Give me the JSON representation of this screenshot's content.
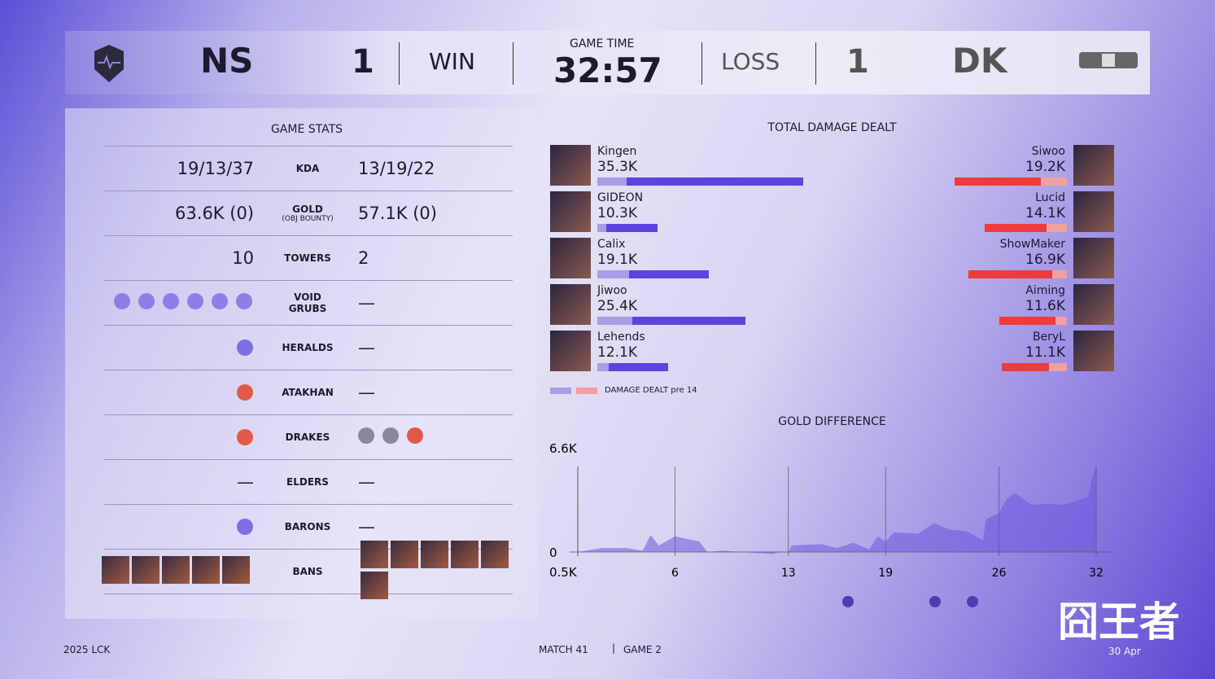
{
  "header": {
    "left_team": "NS",
    "left_score": "1",
    "left_result": "WIN",
    "game_time_label": "GAME TIME",
    "game_time": "32:57",
    "right_result": "LOSS",
    "right_score": "1",
    "right_team": "DK"
  },
  "game_stats": {
    "title": "GAME STATS",
    "rows": [
      {
        "label": "KDA",
        "left": "19/13/37",
        "right": "13/19/22"
      },
      {
        "label": "GOLD",
        "sublabel": "(OBJ BOUNTY)",
        "left": "63.6K (0)",
        "right": "57.1K (0)"
      },
      {
        "label": "TOWERS",
        "left": "10",
        "right": "2"
      },
      {
        "label": "VOID GRUBS",
        "left_icons": 6,
        "right": "—"
      },
      {
        "label": "HERALDS",
        "left_icon": "herald-icon",
        "right": "—"
      },
      {
        "label": "ATAKHAN",
        "left_icon": "atakhan-icon",
        "right": "—"
      },
      {
        "label": "DRAKES",
        "left_icon": "infernal-drake-icon",
        "right_icons": [
          "cloud-drake-icon",
          "chemtech-drake-icon",
          "infernal-drake-icon"
        ]
      },
      {
        "label": "ELDERS",
        "left": "—",
        "right": "—"
      },
      {
        "label": "BARONS",
        "left_icon": "baron-icon",
        "right": "—"
      },
      {
        "label": "BANS",
        "left_count": 5,
        "right_count": 6
      }
    ]
  },
  "damage": {
    "title": "TOTAL DAMAGE DEALT",
    "legend": "DAMAGE DEALT pre 14",
    "max": 35.3,
    "left_color": "#5b45e0",
    "left_pre_color": "#a79ee8",
    "right_color": "#ee3b3b",
    "right_pre_color": "#f1a0a0",
    "left": [
      {
        "name": "Kingen",
        "value": "35.3K",
        "v": 35.3,
        "pre": 5
      },
      {
        "name": "GIDEON",
        "value": "10.3K",
        "v": 10.3,
        "pre": 1.5
      },
      {
        "name": "Calix",
        "value": "19.1K",
        "v": 19.1,
        "pre": 5.5
      },
      {
        "name": "Jiwoo",
        "value": "25.4K",
        "v": 25.4,
        "pre": 6
      },
      {
        "name": "Lehends",
        "value": "12.1K",
        "v": 12.1,
        "pre": 2
      }
    ],
    "right": [
      {
        "name": "Siwoo",
        "value": "19.2K",
        "v": 19.2,
        "pre": 4.5
      },
      {
        "name": "Lucid",
        "value": "14.1K",
        "v": 14.1,
        "pre": 3.5
      },
      {
        "name": "ShowMaker",
        "value": "16.9K",
        "v": 16.9,
        "pre": 2.5
      },
      {
        "name": "Aiming",
        "value": "11.6K",
        "v": 11.6,
        "pre": 2
      },
      {
        "name": "BeryL",
        "value": "11.1K",
        "v": 11.1,
        "pre": 3
      }
    ]
  },
  "chart_data": {
    "type": "area",
    "title": "GOLD DIFFERENCE",
    "y_top_label": "6.6K",
    "y_zero_label": "0",
    "y_bottom_label": "0.5K",
    "ylim": [
      -0.5,
      6.6
    ],
    "xlim": [
      0,
      32
    ],
    "xticks": [
      6,
      13,
      19,
      26,
      32
    ],
    "color": "#6a58dc",
    "grid": "vertical",
    "x": [
      0,
      1.5,
      3,
      4,
      4.5,
      5,
      6,
      7.5,
      8,
      9,
      10,
      12,
      12.5,
      13,
      13.2,
      15,
      16,
      17,
      18,
      18.5,
      19,
      19.5,
      21,
      22,
      23,
      24,
      25,
      25.2,
      26,
      26.5,
      27,
      28,
      29,
      30,
      31,
      31.5,
      31.7,
      32,
      32
    ],
    "y": [
      0,
      0.3,
      0.3,
      0.1,
      1.3,
      0.5,
      1.2,
      0.8,
      0,
      0.1,
      0,
      -0.15,
      0,
      0,
      0.5,
      0.6,
      0.3,
      0.7,
      0.2,
      1.2,
      0.8,
      1.5,
      1.4,
      2.2,
      1.7,
      1.6,
      0.9,
      2.5,
      3,
      4.1,
      4.5,
      3.6,
      3.7,
      3.6,
      4,
      4.2,
      5.5,
      6.6,
      0
    ],
    "event_icons": [
      "herald-icon",
      "atakhan-icon",
      "baron-icon"
    ]
  },
  "footer": {
    "league": "2025 LCK",
    "match": "MATCH 41",
    "game": "GAME 2",
    "date": "30 Apr",
    "watermark": "囧王者"
  }
}
